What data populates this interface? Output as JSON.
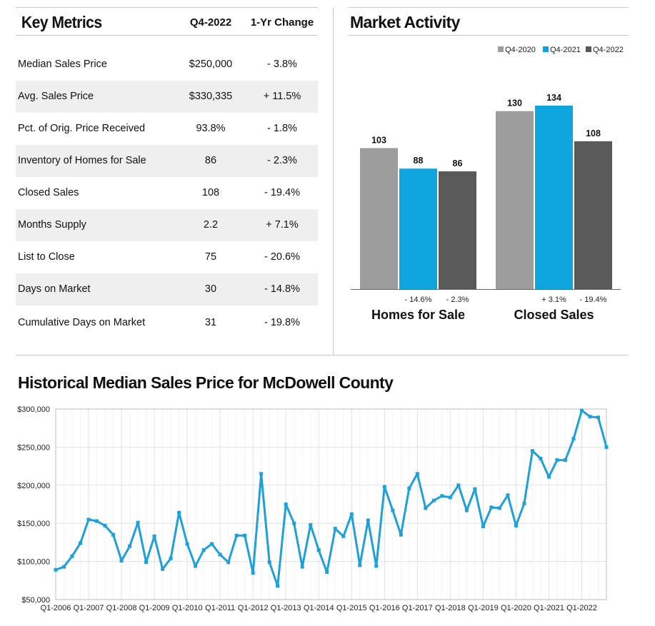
{
  "key_metrics": {
    "title": "Key Metrics",
    "col1": "Q4-2022",
    "col2": "1-Yr Change",
    "rows": [
      {
        "label": "Median Sales Price",
        "value": "$250,000",
        "change": "- 3.8%"
      },
      {
        "label": "Avg. Sales Price",
        "value": "$330,335",
        "change": "+ 11.5%"
      },
      {
        "label": "Pct. of Orig. Price Received",
        "value": "93.8%",
        "change": "- 1.8%"
      },
      {
        "label": "Inventory of Homes for Sale",
        "value": "86",
        "change": "- 2.3%"
      },
      {
        "label": "Closed Sales",
        "value": "108",
        "change": "- 19.4%"
      },
      {
        "label": "Months Supply",
        "value": "2.2",
        "change": "+ 7.1%"
      },
      {
        "label": "List to Close",
        "value": "75",
        "change": "- 20.6%"
      },
      {
        "label": "Days on Market",
        "value": "30",
        "change": "- 14.8%"
      },
      {
        "label": "Cumulative Days on Market",
        "value": "31",
        "change": "- 19.8%"
      }
    ]
  },
  "market_activity_title": "Market Activity",
  "historical_title": "Historical Median Sales Price for McDowell County",
  "colors": {
    "q4_2020": "#9d9d9d",
    "q4_2021": "#0ea5df",
    "q4_2022": "#595959",
    "line": "#1ea0d8"
  },
  "chart_data": [
    {
      "type": "bar",
      "title": "Market Activity",
      "legend": [
        "Q4-2020",
        "Q4-2021",
        "Q4-2022"
      ],
      "legend_position": "top-right",
      "categories": [
        "Homes for Sale",
        "Closed Sales"
      ],
      "series": [
        {
          "name": "Q4-2020",
          "values": [
            103,
            130
          ]
        },
        {
          "name": "Q4-2021",
          "values": [
            88,
            134
          ]
        },
        {
          "name": "Q4-2022",
          "values": [
            86,
            108
          ]
        }
      ],
      "changes": [
        [
          "- 14.6%",
          "- 2.3%"
        ],
        [
          "+ 3.1%",
          "- 19.4%"
        ]
      ],
      "ylim": [
        0,
        150
      ]
    },
    {
      "type": "line",
      "title": "Historical Median Sales Price for McDowell County",
      "x_ticks": [
        "Q1-2006",
        "Q1-2007",
        "Q1-2008",
        "Q1-2009",
        "Q1-2010",
        "Q1-2011",
        "Q1-2012",
        "Q1-2013",
        "Q1-2014",
        "Q1-2015",
        "Q1-2016",
        "Q1-2017",
        "Q1-2018",
        "Q1-2019",
        "Q1-2020",
        "Q1-2021",
        "Q1-2022"
      ],
      "y_ticks": [
        "$50,000",
        "$100,000",
        "$150,000",
        "$200,000",
        "$250,000",
        "$300,000"
      ],
      "ylim": [
        50000,
        300000
      ],
      "grid": true,
      "values": [
        89000,
        93000,
        107000,
        124000,
        155000,
        153000,
        147000,
        135000,
        101000,
        120000,
        151000,
        99000,
        133000,
        90000,
        104000,
        164000,
        123000,
        94000,
        115000,
        123000,
        109000,
        99000,
        134000,
        134000,
        85000,
        215000,
        99000,
        68000,
        175000,
        150000,
        93000,
        148000,
        115000,
        86000,
        143000,
        133000,
        162000,
        95000,
        154000,
        94000,
        198000,
        167000,
        135000,
        196000,
        215000,
        170000,
        180000,
        186000,
        184000,
        200000,
        167000,
        195000,
        146000,
        171000,
        170000,
        187000,
        147000,
        176000,
        245000,
        235000,
        211000,
        233000,
        233000,
        261000,
        298000,
        290000,
        289000,
        250000
      ]
    }
  ]
}
